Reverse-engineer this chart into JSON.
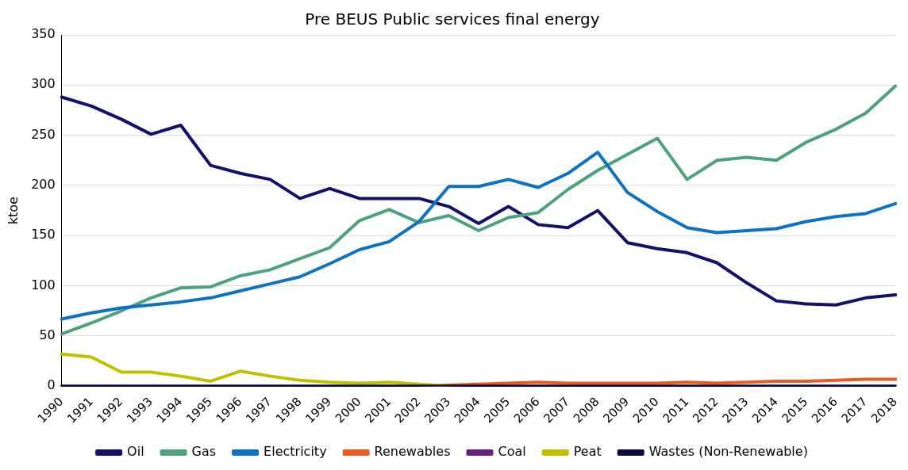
{
  "chart_data": {
    "type": "line",
    "title": "Pre BEUS Public services final energy",
    "ylabel": "ktoe",
    "categories": [
      "1990",
      "1991",
      "1992",
      "1993",
      "1994",
      "1995",
      "1996",
      "1997",
      "1998",
      "1999",
      "2000",
      "2001",
      "2002",
      "2003",
      "2004",
      "2005",
      "2006",
      "2007",
      "2008",
      "2009",
      "2010",
      "2011",
      "2012",
      "2013",
      "2014",
      "2015",
      "2016",
      "2017",
      "2018"
    ],
    "series": [
      {
        "name": "Oil",
        "color": "#13116b",
        "values": [
          288,
          279,
          266,
          251,
          260,
          220,
          212,
          206,
          187,
          197,
          187,
          187,
          187,
          179,
          162,
          179,
          161,
          158,
          175,
          143,
          137,
          133,
          123,
          103,
          85,
          82,
          81,
          88,
          91
        ]
      },
      {
        "name": "Gas",
        "color": "#4ba27c",
        "values": [
          52,
          63,
          75,
          88,
          98,
          99,
          110,
          116,
          127,
          138,
          165,
          176,
          163,
          170,
          155,
          168,
          173,
          196,
          215,
          231,
          247,
          206,
          225,
          228,
          225,
          243,
          256,
          272,
          299
        ]
      },
      {
        "name": "Electricity",
        "color": "#0b72c6",
        "values": [
          67,
          73,
          78,
          81,
          84,
          88,
          95,
          102,
          109,
          122,
          136,
          144,
          164,
          199,
          199,
          206,
          198,
          212,
          233,
          193,
          174,
          158,
          153,
          155,
          157,
          164,
          169,
          172,
          182
        ]
      },
      {
        "name": "Renewables",
        "color": "#eb5a1e",
        "values": [
          null,
          null,
          null,
          null,
          null,
          null,
          null,
          null,
          null,
          null,
          null,
          null,
          0,
          1,
          2,
          3,
          4,
          3,
          3,
          3,
          3,
          4,
          3,
          4,
          5,
          5,
          6,
          7,
          7
        ]
      },
      {
        "name": "Coal",
        "color": "#6c1f7e",
        "values": [
          null,
          null,
          null,
          null,
          null,
          null,
          null,
          null,
          null,
          null,
          null,
          null,
          null,
          null,
          null,
          null,
          null,
          null,
          null,
          null,
          null,
          null,
          null,
          null,
          null,
          null,
          null,
          null,
          null
        ]
      },
      {
        "name": "Peat",
        "color": "#c1c000",
        "values": [
          32,
          29,
          14,
          14,
          10,
          5,
          15,
          10,
          6,
          4,
          3,
          4,
          2,
          0,
          null,
          null,
          null,
          null,
          null,
          null,
          null,
          null,
          null,
          null,
          null,
          null,
          null,
          null,
          null
        ]
      },
      {
        "name": "Wastes (Non-Renewable)",
        "color": "#0b0c3c",
        "values": [
          0,
          0,
          0,
          0,
          0,
          0,
          0,
          0,
          0,
          0,
          0,
          0,
          0,
          0,
          0,
          0,
          0,
          0,
          0,
          0,
          0,
          0,
          0,
          0,
          0,
          0,
          0,
          0,
          0
        ]
      }
    ],
    "ylim": [
      0,
      350
    ],
    "yticks": [
      0,
      50,
      100,
      150,
      200,
      250,
      300,
      350
    ],
    "grid": "y",
    "legend": "bottom",
    "marker": "none",
    "line_style": "solid"
  }
}
